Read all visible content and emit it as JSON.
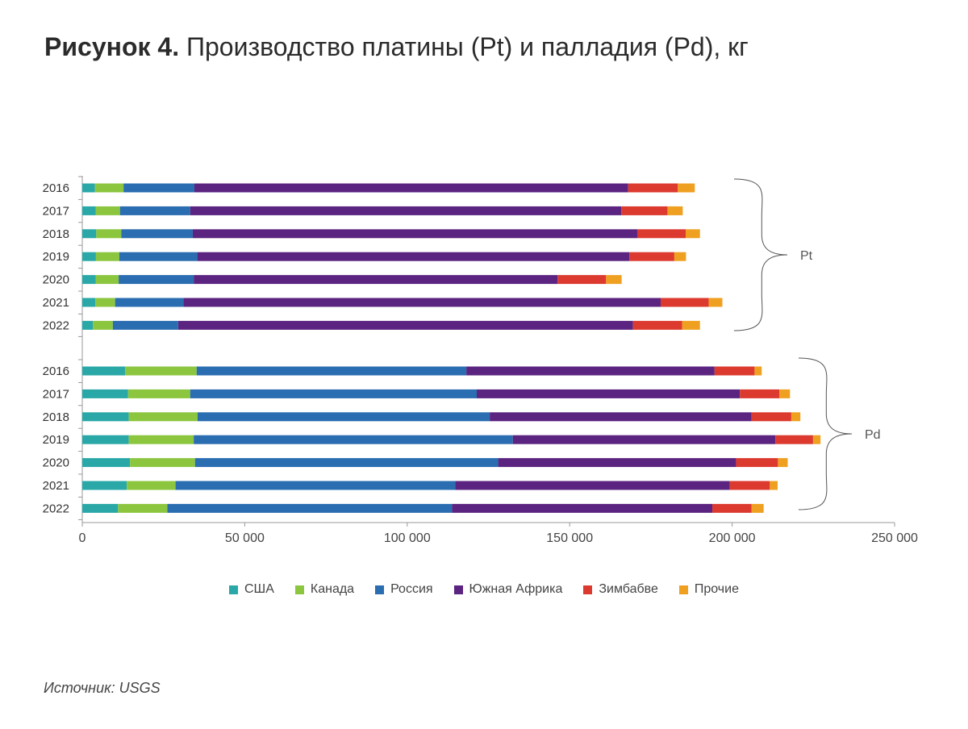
{
  "title": {
    "bold": "Рисунок 4.",
    "rest": " Производство платины (Pt) и палладия (Pd), кг"
  },
  "source": "Источник: USGS",
  "colors": {
    "США": "#2aa7a7",
    "Канада": "#8cc63f",
    "Россия": "#2a6db1",
    "Южная Африка": "#5b2480",
    "Зимбабве": "#dc3a2f",
    "Прочие": "#efa020"
  },
  "chart_data": {
    "type": "bar",
    "orientation": "horizontal",
    "stacked": true,
    "xlim": [
      0,
      250000
    ],
    "x_ticks": [
      0,
      50000,
      100000,
      150000,
      200000,
      250000
    ],
    "x_tick_labels": [
      "0",
      "50 000",
      "100 000",
      "150 000",
      "200 000",
      "250 000"
    ],
    "legend_position": "bottom",
    "series_names": [
      "США",
      "Канада",
      "Россия",
      "Южная Африка",
      "Зимбабве",
      "Прочие"
    ],
    "groups": [
      {
        "label": "Pt",
        "categories": [
          "2016",
          "2017",
          "2018",
          "2019",
          "2020",
          "2021",
          "2022"
        ],
        "series": [
          {
            "name": "США",
            "values": [
              3900,
              4100,
              4300,
              4200,
              4100,
              4000,
              3300
            ]
          },
          {
            "name": "Канада",
            "values": [
              8800,
              7500,
              7700,
              7200,
              7100,
              6100,
              6100
            ]
          },
          {
            "name": "Россия",
            "values": [
              21800,
              21600,
              22000,
              24000,
              23100,
              21000,
              20100
            ]
          },
          {
            "name": "Южная Африка",
            "values": [
              133500,
              132700,
              136800,
              133000,
              112000,
              146900,
              140000
            ]
          },
          {
            "name": "Зимбабве",
            "values": [
              15300,
              14200,
              14900,
              13800,
              14900,
              14800,
              15100
            ]
          },
          {
            "name": "Прочие",
            "values": [
              5200,
              4700,
              4400,
              3600,
              4800,
              4200,
              5500
            ]
          }
        ]
      },
      {
        "label": "Pd",
        "categories": [
          "2016",
          "2017",
          "2018",
          "2019",
          "2020",
          "2021",
          "2022"
        ],
        "series": [
          {
            "name": "США",
            "values": [
              13200,
              14100,
              14300,
              14300,
              14700,
              13700,
              11000
            ]
          },
          {
            "name": "Канада",
            "values": [
              22000,
              19100,
              21200,
              20000,
              20000,
              15000,
              15200
            ]
          },
          {
            "name": "Россия",
            "values": [
              83000,
              88200,
              89900,
              98200,
              93300,
              86100,
              87600
            ]
          },
          {
            "name": "Южная Африка",
            "values": [
              76400,
              81000,
              80600,
              80800,
              73200,
              84500,
              80100
            ]
          },
          {
            "name": "Зимбабве",
            "values": [
              12300,
              12100,
              12200,
              11600,
              12900,
              12300,
              12100
            ]
          },
          {
            "name": "Прочие",
            "values": [
              2200,
              3300,
              2800,
              2300,
              3000,
              2400,
              3700
            ]
          }
        ]
      }
    ]
  }
}
